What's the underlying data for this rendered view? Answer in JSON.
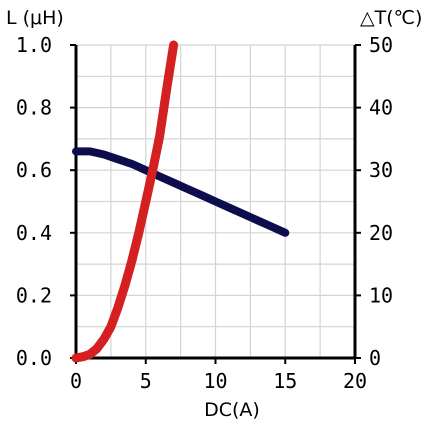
{
  "chart_data": {
    "type": "line",
    "title": "",
    "xlabel": "DC(A)",
    "ylabel_left": "L (μH)",
    "ylabel_right": "△T(℃)",
    "xlim": [
      0,
      20
    ],
    "ylim_left": [
      0,
      1.0
    ],
    "ylim_right": [
      0,
      50
    ],
    "x_ticks": [
      "0",
      "5",
      "10",
      "15",
      "20"
    ],
    "y_left_ticks": [
      "0.0",
      "0.2",
      "0.4",
      "0.6",
      "0.8",
      "1.0"
    ],
    "y_right_ticks": [
      "0",
      "10",
      "20",
      "30",
      "40",
      "50"
    ],
    "grid": true,
    "series": [
      {
        "axis": "left",
        "color": "#0d0d4d",
        "x": [
          0,
          1,
          2,
          3,
          4,
          5,
          6,
          7,
          8,
          9,
          10,
          11,
          12,
          13,
          14,
          15
        ],
        "y": [
          0.66,
          0.66,
          0.65,
          0.635,
          0.62,
          0.6,
          0.58,
          0.56,
          0.54,
          0.52,
          0.5,
          0.48,
          0.46,
          0.44,
          0.42,
          0.4
        ]
      },
      {
        "axis": "right",
        "color": "#d42020",
        "x": [
          0,
          0.5,
          1,
          1.5,
          2,
          2.5,
          3,
          3.5,
          4,
          4.5,
          5,
          5.5,
          6,
          6.5,
          7
        ],
        "y": [
          0,
          0.2,
          0.6,
          1.5,
          3,
          5,
          8,
          11.5,
          15.5,
          20,
          25,
          30,
          35.5,
          43,
          50
        ]
      }
    ]
  }
}
